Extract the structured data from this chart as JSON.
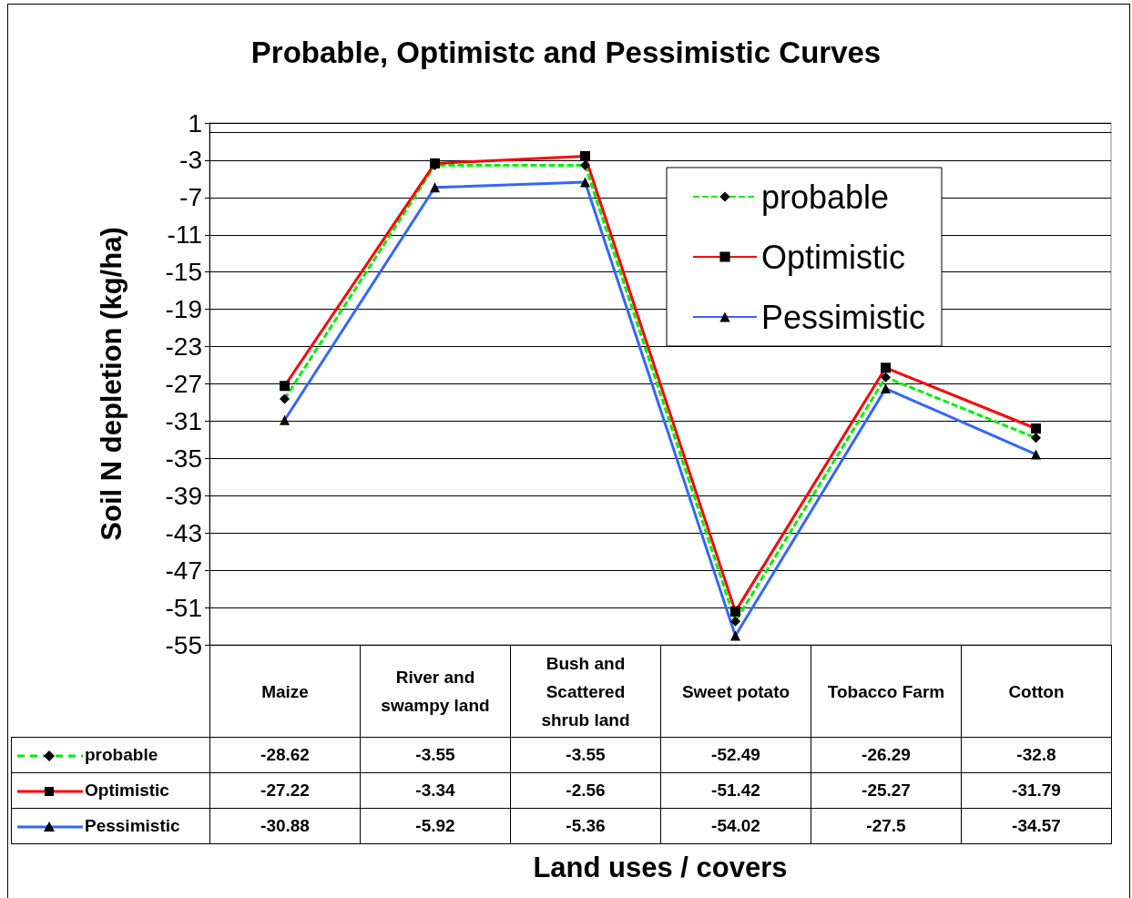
{
  "chart_data": {
    "type": "line",
    "title": "Probable, Optimistc and Pessimistic Curves",
    "xlabel": "Land uses / covers",
    "ylabel": "Soil N depletion (kg/ha)",
    "categories": [
      "Maize",
      "River and swampy land",
      "Bush and Scattered shrub land",
      "Sweet potato",
      "Tobacco Farm",
      "Cotton"
    ],
    "series": [
      {
        "name": "probable",
        "color": "#00ee00",
        "marker": "diamond",
        "line_style": "dashed",
        "values": [
          -28.62,
          -3.55,
          -3.55,
          -52.49,
          -26.29,
          -32.8
        ]
      },
      {
        "name": "Optimistic",
        "color": "#ff0000",
        "marker": "square",
        "line_style": "solid",
        "values": [
          -27.22,
          -3.34,
          -2.56,
          -51.42,
          -25.27,
          -31.79
        ]
      },
      {
        "name": "Pessimistic",
        "color": "#3366ff",
        "marker": "triangle",
        "line_style": "solid",
        "values": [
          -30.88,
          -5.92,
          -5.36,
          -54.02,
          -27.5,
          -34.57
        ]
      }
    ],
    "ylim": [
      -55,
      1
    ],
    "yticks": [
      1,
      -3,
      -7,
      -11,
      -15,
      -19,
      -23,
      -27,
      -31,
      -35,
      -39,
      -43,
      -47,
      -51,
      -55
    ],
    "grid": "y",
    "legend": "top right",
    "data_labels": true
  }
}
